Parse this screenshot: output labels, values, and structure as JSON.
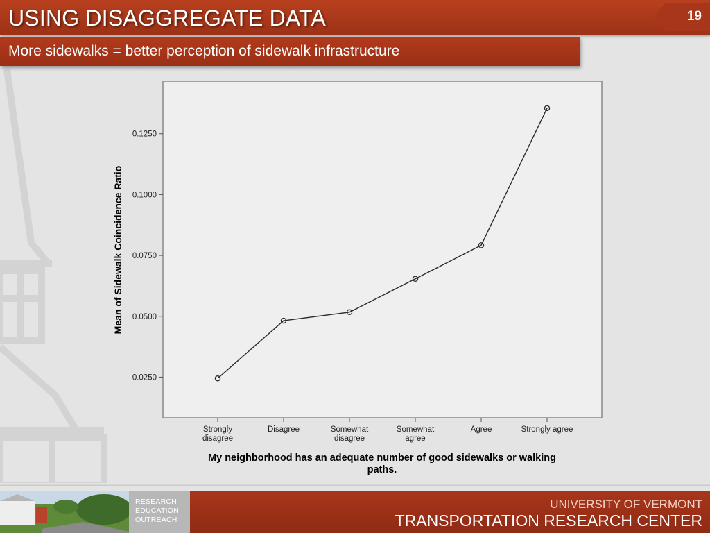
{
  "slide": {
    "title": "USING DISAGGREGATE DATA",
    "number": "19",
    "subtitle": "More sidewalks = better perception of sidewalk infrastructure"
  },
  "footer": {
    "tagline": [
      "RESEARCH",
      "EDUCATION",
      "OUTREACH"
    ],
    "org_line1": "UNIVERSITY OF VERMONT",
    "org_line2": "TRANSPORTATION RESEARCH CENTER"
  },
  "colors": {
    "brand_red": "#a8361a",
    "plot_background": "#efefef",
    "line": "#2a2a2a"
  },
  "chart_data": {
    "type": "line",
    "title": "",
    "xlabel_lines": [
      "My neighborhood has an adequate number of good sidewalks or walking",
      "paths."
    ],
    "ylabel": "Mean of Sidewalk Coincidence Ratio",
    "categories": [
      [
        "Strongly",
        "disagree"
      ],
      [
        "Disagree"
      ],
      [
        "Somewhat",
        "disagree"
      ],
      [
        "Somewhat",
        "agree"
      ],
      [
        "Agree"
      ],
      [
        "Strongly agree"
      ]
    ],
    "values": [
      0.0245,
      0.0482,
      0.0517,
      0.0654,
      0.0792,
      0.1355
    ],
    "yticks": [
      "0.0250",
      "0.0500",
      "0.0750",
      "0.1000",
      "0.1250"
    ],
    "ylim": [
      0.0083,
      0.1466
    ],
    "markers": "open-circle",
    "grid": false,
    "legend": "none"
  }
}
